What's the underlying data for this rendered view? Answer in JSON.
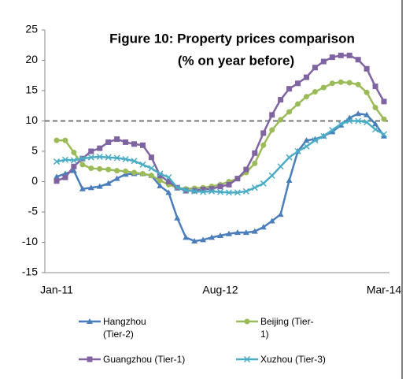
{
  "chart_data": {
    "type": "line",
    "title": "Figure 10: Property prices comparison",
    "subtitle": "(% on year before)",
    "categories": [
      "Jan-11",
      null,
      null,
      null,
      null,
      null,
      null,
      null,
      null,
      null,
      null,
      null,
      null,
      null,
      null,
      null,
      null,
      null,
      null,
      "Aug-12",
      null,
      null,
      null,
      null,
      null,
      null,
      null,
      null,
      null,
      null,
      null,
      null,
      null,
      null,
      null,
      null,
      null,
      null,
      "Mar-14"
    ],
    "series": [
      {
        "name": "Hangzhou (Tier-2)",
        "color": "#4a7ebb",
        "marker": "triangle",
        "values": [
          0.8,
          1.3,
          1.8,
          -1.2,
          -1.0,
          -0.8,
          -0.3,
          0.5,
          1.2,
          1.3,
          1.3,
          1.0,
          -0.7,
          -1.8,
          -6,
          -9.2,
          -9.8,
          -9.6,
          -9.2,
          -8.9,
          -8.6,
          -8.4,
          -8.4,
          -8.2,
          -7.5,
          -6.5,
          -5.4,
          0.2,
          5,
          6.8,
          7,
          7.5,
          8.2,
          9.3,
          10.5,
          11.2,
          11,
          9.5,
          7.5
        ]
      },
      {
        "name": "Beijing (Tier-1)",
        "color": "#9bbb59",
        "marker": "circle",
        "values": [
          6.8,
          6.8,
          4.8,
          2.8,
          2.2,
          2.1,
          2.0,
          1.8,
          1.7,
          1.5,
          1.3,
          1.0,
          0.2,
          -0.5,
          -1.0,
          -1.2,
          -1.1,
          -1.0,
          -0.8,
          -0.5,
          0,
          0.5,
          1.5,
          3,
          6,
          8.5,
          10.2,
          11.5,
          12.8,
          14,
          14.8,
          15.5,
          16.2,
          16.4,
          16.3,
          16,
          14.7,
          12.2,
          10.3
        ]
      },
      {
        "name": "Guangzhou (Tier-1)",
        "color": "#8064a2",
        "marker": "square",
        "values": [
          0.1,
          0.7,
          2.5,
          3.8,
          5,
          5.5,
          6.5,
          7,
          6.5,
          6.2,
          6,
          4,
          1,
          0,
          -1,
          -1.5,
          -1.5,
          -1.3,
          -1.2,
          -0.8,
          -0.5,
          0.5,
          2,
          4.7,
          8,
          11,
          13.5,
          15.3,
          16.2,
          17.2,
          18.8,
          19.8,
          20.5,
          20.8,
          20.8,
          20.1,
          18.6,
          15.7,
          13.2
        ]
      },
      {
        "name": "Xuzhou (Tier-3)",
        "color": "#4bacc6",
        "marker": "x",
        "values": [
          3.3,
          3.6,
          3.5,
          3.8,
          4,
          4.1,
          4,
          3.9,
          3.7,
          3.4,
          2.8,
          2.2,
          1.3,
          0.7,
          -1.0,
          -1.4,
          -1.6,
          -1.7,
          -1.6,
          -1.7,
          -1.8,
          -1.8,
          -1.6,
          -1.0,
          -0.3,
          1,
          2.5,
          4,
          5,
          5.8,
          6.8,
          7.5,
          8.5,
          9.5,
          10,
          10,
          9.8,
          8.6,
          7.8
        ]
      }
    ],
    "reference_line": 10,
    "ylim": [
      -15,
      25
    ],
    "yticks": [
      -15,
      -10,
      -5,
      0,
      5,
      10,
      15,
      20,
      25
    ],
    "legend": "bottom"
  }
}
